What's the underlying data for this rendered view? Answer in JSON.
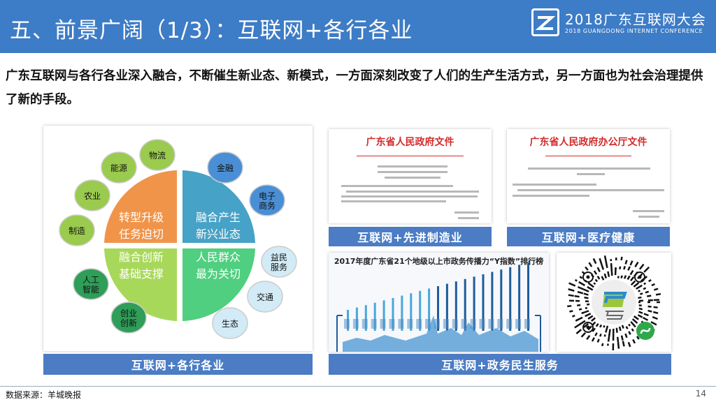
{
  "header": {
    "title": "五、前景广阔（1/3）：互联网+各行各业",
    "logo_cn": "2018广东互联网大会",
    "logo_en": "2018 GUANGDONG INTERNET CONFERENCE"
  },
  "intro": "广东互联网与各行各业深入融合，不断催生新业态、新模式，一方面深刻改变了人们的生产生活方式，另一方面也为社会治理提供了新的手段。",
  "diagram": {
    "quadrants": [
      {
        "line1": "转型升级",
        "line2": "任务迫切",
        "color": "#f0944a"
      },
      {
        "line1": "融合产生",
        "line2": "新兴业态",
        "color": "#46a2c6"
      },
      {
        "line1": "融合创新",
        "line2": "基础支撑",
        "color": "#a8d85a"
      },
      {
        "line1": "人民群众",
        "line2": "最为关切",
        "color": "#4fcf7f"
      }
    ],
    "bubbles": [
      {
        "l1": "物流",
        "l2": ""
      },
      {
        "l1": "能源",
        "l2": ""
      },
      {
        "l1": "农业",
        "l2": ""
      },
      {
        "l1": "制造",
        "l2": ""
      },
      {
        "l1": "金融",
        "l2": ""
      },
      {
        "l1": "电子",
        "l2": "商务"
      },
      {
        "l1": "益民",
        "l2": "服务"
      },
      {
        "l1": "交通",
        "l2": ""
      },
      {
        "l1": "生态",
        "l2": ""
      },
      {
        "l1": "人工",
        "l2": "智能"
      },
      {
        "l1": "创业",
        "l2": "创新"
      }
    ],
    "caption": "互联网+各行各业"
  },
  "doc1": {
    "title": "广东省人民政府文件",
    "caption": "互联网+先进制造业"
  },
  "doc2": {
    "title": "广东省人民政府办公厅文件",
    "caption": "互联网+医疗健康"
  },
  "ranking": {
    "title": "2017年度广东省21个地级以上市政务传播力“Y指数”排行榜"
  },
  "gov_caption": "互联网+政务民生服务",
  "footer": {
    "source": "数据来源：羊城晚报",
    "page": "14"
  }
}
